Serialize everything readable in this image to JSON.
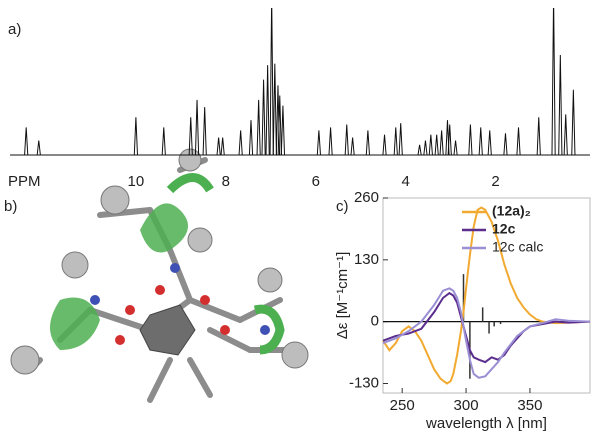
{
  "chart_data": [
    {
      "type": "spectrum",
      "panel": "a)",
      "xlabel": "PPM",
      "xlim": [
        12.8,
        -0.1
      ],
      "xticks": [
        10,
        8,
        6,
        4,
        2
      ],
      "ylim": [
        0,
        100
      ],
      "color": "#111111",
      "x": [
        12.44,
        12.16,
        10.0,
        9.38,
        8.78,
        8.64,
        8.47,
        8.16,
        8.07,
        7.67,
        7.44,
        7.27,
        7.16,
        7.07,
        6.98,
        6.91,
        6.84,
        6.8,
        6.73,
        5.93,
        5.67,
        5.31,
        5.18,
        4.84,
        4.47,
        4.22,
        4.11,
        3.69,
        3.56,
        3.44,
        3.31,
        3.2,
        3.07,
        3.02,
        2.89,
        2.56,
        2.33,
        2.13,
        1.78,
        1.49,
        1.04,
        0.71,
        0.56,
        0.44,
        0.27
      ],
      "values": [
        19,
        10,
        26,
        19,
        26,
        38,
        33,
        12,
        12,
        17,
        24,
        38,
        52,
        62,
        110,
        63,
        48,
        41,
        34,
        17,
        19,
        21,
        12,
        17,
        14,
        19,
        22,
        7,
        10,
        14,
        14,
        17,
        24,
        21,
        10,
        21,
        19,
        17,
        15,
        19,
        26,
        110,
        69,
        28,
        45
      ]
    },
    {
      "type": "line",
      "panel": "c)",
      "xlabel": "wavelength λ [nm]",
      "ylabel": "Δε [M⁻¹cm⁻¹]",
      "xlim": [
        235,
        397
      ],
      "xticks": [
        250,
        300,
        350
      ],
      "ylim": [
        -150,
        260
      ],
      "yticks": [
        -130,
        0,
        130,
        260
      ],
      "series": [
        {
          "name": "(12a)₂",
          "color": "#f2a930",
          "x": [
            235,
            240,
            245,
            250,
            255,
            260,
            265,
            270,
            275,
            280,
            285,
            288,
            290,
            293,
            296,
            298,
            300,
            303,
            306,
            309,
            312,
            315,
            320,
            325,
            330,
            335,
            340,
            345,
            350,
            355,
            360,
            370,
            380,
            397
          ],
          "values": [
            -40,
            -60,
            -45,
            -20,
            -10,
            -20,
            -40,
            -70,
            -100,
            -120,
            -130,
            -125,
            -110,
            -70,
            -20,
            20,
            70,
            140,
            200,
            235,
            240,
            235,
            210,
            170,
            120,
            80,
            50,
            30,
            15,
            5,
            0,
            -3,
            -2,
            0
          ]
        },
        {
          "name": "12c",
          "color": "#5b2d8e",
          "x": [
            235,
            245,
            255,
            265,
            275,
            282,
            287,
            290,
            293,
            296,
            300,
            303,
            306,
            310,
            315,
            320,
            325,
            330,
            335,
            340,
            345,
            350,
            360,
            370,
            380,
            397
          ],
          "values": [
            -40,
            -30,
            -25,
            -15,
            20,
            50,
            60,
            55,
            40,
            10,
            -30,
            -60,
            -75,
            -80,
            -85,
            -75,
            -80,
            -70,
            -50,
            -35,
            -20,
            -10,
            -5,
            0,
            -2,
            0
          ]
        },
        {
          "name": "12c calc",
          "color": "#9b8fd4",
          "x": [
            235,
            245,
            255,
            265,
            275,
            282,
            287,
            290,
            293,
            296,
            300,
            303,
            306,
            310,
            315,
            320,
            325,
            330,
            340,
            350,
            360,
            370,
            380,
            397
          ],
          "values": [
            -45,
            -35,
            -20,
            0,
            35,
            65,
            70,
            65,
            50,
            20,
            -40,
            -80,
            -110,
            -118,
            -115,
            -100,
            -85,
            -65,
            -30,
            -10,
            -3,
            5,
            2,
            0
          ]
        }
      ],
      "sticks": {
        "color": "#333333",
        "x": [
          298,
          303,
          313,
          318,
          322,
          327
        ],
        "values": [
          100,
          -120,
          30,
          -25,
          -10,
          -5
        ]
      }
    }
  ],
  "panel_b": {
    "label": "b)"
  }
}
